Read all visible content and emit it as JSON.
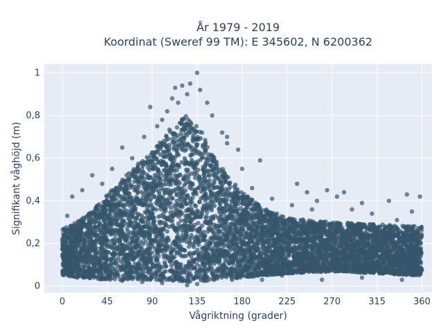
{
  "chart_data": {
    "type": "scatter",
    "title_lines": [
      "År 1979 - 2019",
      "Koordinat (Sweref 99 TM): E 345602, N 6200362"
    ],
    "xlabel": "Vågriktning (grader)",
    "ylabel": "Signifikant våghöjd (m)",
    "xlim": [
      -18,
      370
    ],
    "ylim": [
      -0.03,
      1.04
    ],
    "x_ticks": [
      0,
      45,
      90,
      135,
      180,
      225,
      270,
      315,
      360
    ],
    "x_tick_labels": [
      "0",
      "45",
      "90",
      "135",
      "180",
      "225",
      "270",
      "315",
      "360"
    ],
    "y_ticks": [
      0,
      0.2,
      0.4,
      0.6,
      0.8,
      1
    ],
    "y_tick_labels": [
      "0",
      "0,2",
      "0,4",
      "0,6",
      "0,8",
      "1"
    ],
    "grid": true,
    "marker_color": "#34566b",
    "plot_background": "#e5ecf6",
    "envelope_upper": [
      [
        0,
        0.27
      ],
      [
        15,
        0.3
      ],
      [
        30,
        0.36
      ],
      [
        45,
        0.43
      ],
      [
        60,
        0.5
      ],
      [
        75,
        0.57
      ],
      [
        90,
        0.63
      ],
      [
        105,
        0.72
      ],
      [
        115,
        0.78
      ],
      [
        125,
        0.8
      ],
      [
        135,
        0.75
      ],
      [
        150,
        0.63
      ],
      [
        165,
        0.52
      ],
      [
        180,
        0.44
      ],
      [
        200,
        0.37
      ],
      [
        225,
        0.32
      ],
      [
        270,
        0.3
      ],
      [
        315,
        0.29
      ],
      [
        360,
        0.28
      ]
    ],
    "envelope_lower": [
      [
        0,
        0.05
      ],
      [
        45,
        0.03
      ],
      [
        90,
        0.03
      ],
      [
        135,
        0.02
      ],
      [
        180,
        0.04
      ],
      [
        225,
        0.06
      ],
      [
        270,
        0.07
      ],
      [
        315,
        0.06
      ],
      [
        360,
        0.05
      ]
    ],
    "outliers": [
      [
        135,
        1.0
      ],
      [
        128,
        0.95
      ],
      [
        120,
        0.94
      ],
      [
        113,
        0.93
      ],
      [
        138,
        0.92
      ],
      [
        88,
        0.84
      ],
      [
        145,
        0.86
      ],
      [
        105,
        0.82
      ],
      [
        95,
        0.75
      ],
      [
        82,
        0.7
      ],
      [
        165,
        0.67
      ],
      [
        165,
        0.7
      ],
      [
        176,
        0.64
      ],
      [
        198,
        0.59
      ],
      [
        180,
        0.55
      ],
      [
        60,
        0.65
      ],
      [
        70,
        0.6
      ],
      [
        30,
        0.52
      ],
      [
        20,
        0.45
      ],
      [
        10,
        0.42
      ],
      [
        235,
        0.48
      ],
      [
        245,
        0.44
      ],
      [
        255,
        0.4
      ],
      [
        265,
        0.45
      ],
      [
        282,
        0.44
      ],
      [
        275,
        0.42
      ],
      [
        290,
        0.36
      ],
      [
        300,
        0.39
      ],
      [
        327,
        0.4
      ],
      [
        345,
        0.43
      ],
      [
        358,
        0.42
      ],
      [
        310,
        0.34
      ],
      [
        230,
        0.38
      ],
      [
        210,
        0.41
      ],
      [
        190,
        0.46
      ],
      [
        140,
        0.72
      ],
      [
        110,
        0.88
      ],
      [
        125,
        0.9
      ],
      [
        116,
        0.86
      ],
      [
        100,
        0.78
      ],
      [
        150,
        0.8
      ],
      [
        160,
        0.72
      ],
      [
        50,
        0.55
      ],
      [
        40,
        0.48
      ],
      [
        5,
        0.33
      ],
      [
        350,
        0.35
      ],
      [
        335,
        0.31
      ],
      [
        250,
        0.36
      ],
      [
        220,
        0.05
      ],
      [
        300,
        0.04
      ],
      [
        170,
        0.03
      ],
      [
        80,
        0.02
      ],
      [
        60,
        0.025
      ],
      [
        260,
        0.03
      ],
      [
        340,
        0.03
      ],
      [
        15,
        0.04
      ],
      [
        125,
        0.005
      ],
      [
        135,
        0.01
      ],
      [
        100,
        0.015
      ],
      [
        200,
        0.03
      ]
    ]
  }
}
